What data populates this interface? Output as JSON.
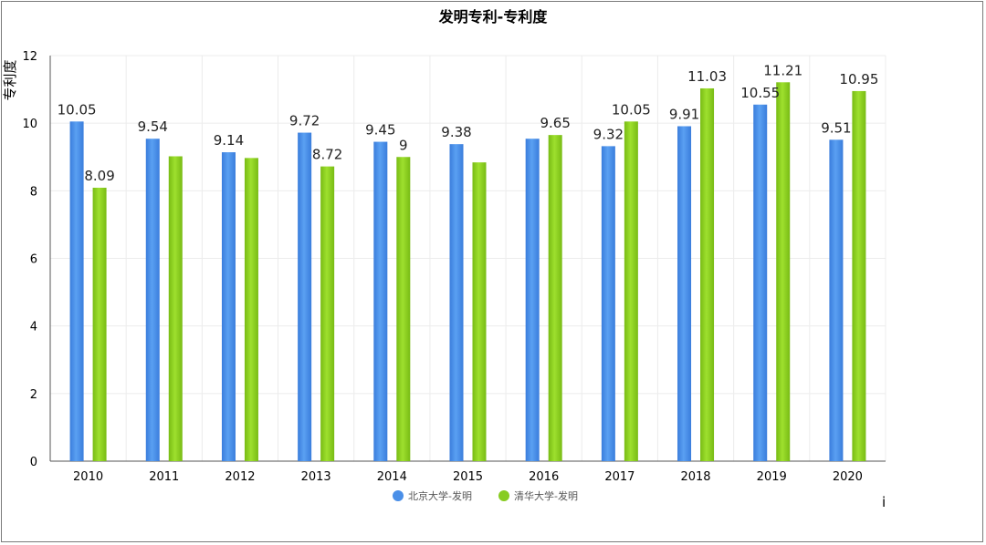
{
  "chart_data": {
    "type": "bar",
    "title": "发明专利-专利度",
    "xlabel": "",
    "ylabel": "专利度",
    "ylim": [
      0,
      12
    ],
    "yticks": [
      0,
      2,
      4,
      6,
      8,
      10,
      12
    ],
    "grid": true,
    "legend_position": "bottom-center",
    "corner_mark": "i",
    "categories": [
      "2010",
      "2011",
      "2012",
      "2013",
      "2014",
      "2015",
      "2016",
      "2017",
      "2018",
      "2019",
      "2020"
    ],
    "series": [
      {
        "name": "北京大学-发明",
        "color": "#4a8fe8",
        "values": [
          10.05,
          9.54,
          9.14,
          9.72,
          9.45,
          9.38,
          9.54,
          9.32,
          9.91,
          10.55,
          9.51
        ],
        "labels": [
          "10.05",
          "9.54",
          "9.14",
          "9.72",
          "9.45",
          "9.38",
          "",
          "9.32",
          "9.91",
          "10.55",
          "9.51"
        ]
      },
      {
        "name": "清华大学-发明",
        "color": "#88cc22",
        "values": [
          8.09,
          9.02,
          8.97,
          8.72,
          9.0,
          8.84,
          9.65,
          10.05,
          11.03,
          11.21,
          10.95
        ],
        "labels": [
          "8.09",
          "",
          "",
          "8.72",
          "9",
          "",
          "9.65",
          "10.05",
          "11.03",
          "11.21",
          "10.95"
        ]
      }
    ]
  }
}
